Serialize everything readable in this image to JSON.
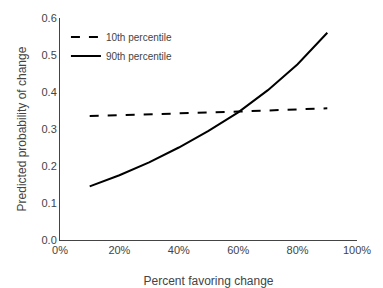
{
  "chart_data": {
    "type": "line",
    "x": [
      0.1,
      0.2,
      0.3,
      0.4,
      0.5,
      0.6,
      0.7,
      0.8,
      0.9
    ],
    "series": [
      {
        "name": "10th percentile",
        "color": "#000000",
        "line_style": "dashed",
        "values": [
          0.335,
          0.337,
          0.339,
          0.341,
          0.343,
          0.347,
          0.35,
          0.352,
          0.356
        ]
      },
      {
        "name": "90th percentile",
        "color": "#000000",
        "line_style": "solid",
        "values": [
          0.145,
          0.175,
          0.21,
          0.25,
          0.295,
          0.345,
          0.405,
          0.475,
          0.56
        ]
      }
    ],
    "x_label": "Percent favoring change",
    "y_label": "Predicted probability of change",
    "xlim": [
      0.0,
      1.0
    ],
    "ylim": [
      0.0,
      0.6
    ],
    "xticks": [
      {
        "value": 0.0,
        "label": "0%"
      },
      {
        "value": 0.2,
        "label": "20%"
      },
      {
        "value": 0.4,
        "label": "40%"
      },
      {
        "value": 0.6,
        "label": "60%"
      },
      {
        "value": 0.8,
        "label": "80%"
      },
      {
        "value": 1.0,
        "label": "100%"
      }
    ],
    "yticks": [
      {
        "value": 0.0,
        "label": "0.0"
      },
      0.1,
      0.2,
      0.3,
      0.4,
      0.5,
      0.6
    ],
    "grid": false,
    "legend": "upper left"
  }
}
